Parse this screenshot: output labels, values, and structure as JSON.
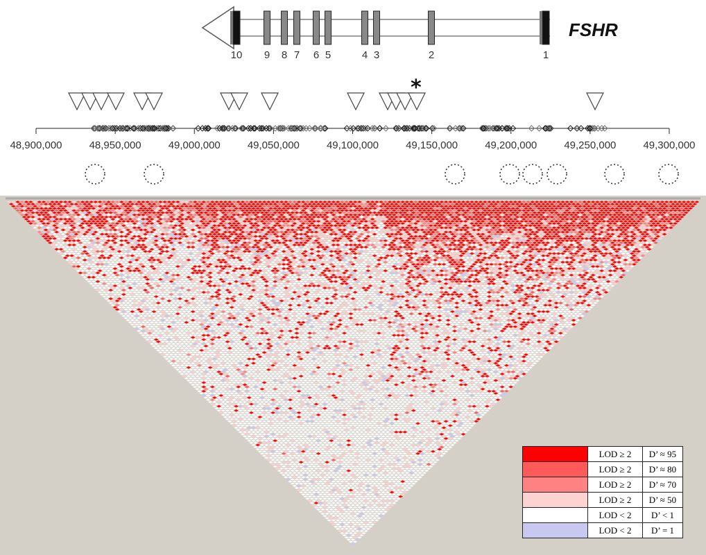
{
  "gene": {
    "name": "FSHR",
    "exons": [
      "10",
      "9",
      "8",
      "7",
      "6",
      "5",
      "4",
      "3",
      "2",
      "1"
    ]
  },
  "marker": {
    "star": "*"
  },
  "axis": {
    "ticks": [
      "48,900,000",
      "48,950,000",
      "49,000,000",
      "49,050,000",
      "49,100,000",
      "49,150,000",
      "49,200,000",
      "49,250,000",
      "49,300,000"
    ]
  },
  "colors": {
    "strong": "#ff0000",
    "d80": "#ff5a5a",
    "d70": "#ff8282",
    "d50": "#ffd2d2",
    "white": "#ffffff",
    "blue": "#c8c8f0",
    "background": "#d4d0c8"
  },
  "legend": [
    {
      "lod": "LOD ≥ 2",
      "dprime": "D’ ≈ 95",
      "color": "#ff0000"
    },
    {
      "lod": "LOD ≥ 2",
      "dprime": "D’ ≈ 80",
      "color": "#ff5a5a"
    },
    {
      "lod": "LOD ≥ 2",
      "dprime": "D’ ≈ 70",
      "color": "#ff8282"
    },
    {
      "lod": "LOD ≥ 2",
      "dprime": "D’ ≈ 50",
      "color": "#ffd2d2"
    },
    {
      "lod": "LOD < 2",
      "dprime": "D’ < 1",
      "color": "#ffffff"
    },
    {
      "lod": "LOD < 2",
      "dprime": "D’ = 1",
      "color": "#c8c8f0"
    }
  ]
}
